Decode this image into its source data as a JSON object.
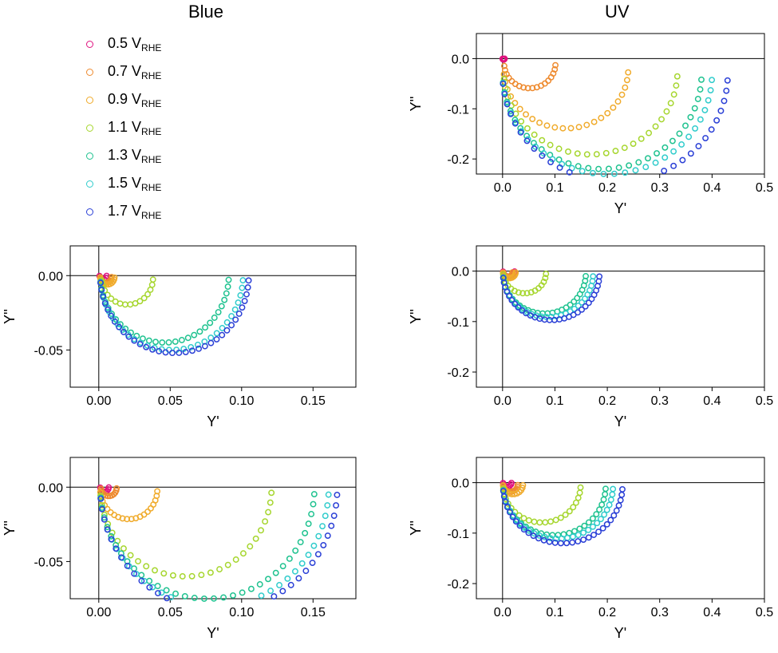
{
  "column_titles": [
    "Blue",
    "UV"
  ],
  "legend": [
    {
      "v": "0.5 V",
      "sub": "RHE",
      "color": "#e0127f"
    },
    {
      "v": "0.7 V",
      "sub": "RHE",
      "color": "#ee8a2e"
    },
    {
      "v": "0.9 V",
      "sub": "RHE",
      "color": "#f0ab2c"
    },
    {
      "v": "1.1 V",
      "sub": "RHE",
      "color": "#a6d62e"
    },
    {
      "v": "1.3 V",
      "sub": "RHE",
      "color": "#1ec28f"
    },
    {
      "v": "1.5 V",
      "sub": "RHE",
      "color": "#30cccc"
    },
    {
      "v": "1.7 V",
      "sub": "RHE",
      "color": "#2a3fd6"
    }
  ],
  "chart_data": [
    {
      "id": "uv-top",
      "column": "UV",
      "type": "scatter",
      "xlabel": "Y'",
      "ylabel": "Y''",
      "xlim": [
        -0.05,
        0.5
      ],
      "ylim": [
        -0.23,
        0.05
      ],
      "xticks": [
        "0.0",
        "0.1",
        "0.2",
        "0.3",
        "0.4",
        "0.5"
      ],
      "yticks": [
        "0.0",
        "-0.1",
        "-0.2"
      ],
      "series": [
        {
          "name": "0.5 VRHE",
          "arcs": [
            {
              "r": 0.002,
              "cx": 0.002,
              "cy": 0.0,
              "n": 6
            }
          ]
        },
        {
          "name": "0.7 VRHE",
          "arcs": [
            {
              "r": 0.049,
              "cx": 0.052,
              "cy": -0.01,
              "n": 18
            }
          ]
        },
        {
          "name": "0.9 VRHE",
          "arcs": [
            {
              "r": 0.119,
              "cx": 0.121,
              "cy": -0.02,
              "n": 24
            }
          ]
        },
        {
          "name": "1.1 VRHE",
          "arcs": [
            {
              "r": 0.166,
              "cx": 0.168,
              "cy": -0.025,
              "n": 28
            }
          ]
        },
        {
          "name": "1.3 VRHE",
          "arcs": [
            {
              "r": 0.19,
              "cx": 0.19,
              "cy": -0.03,
              "n": 30
            }
          ]
        },
        {
          "name": "1.5 VRHE",
          "arcs": [
            {
              "r": 0.2,
              "cx": 0.2,
              "cy": -0.03,
              "n": 30
            }
          ]
        },
        {
          "name": "1.7 VRHE",
          "arcs": [
            {
              "r": 0.215,
              "cx": 0.215,
              "cy": -0.03,
              "n": 32
            }
          ]
        }
      ]
    },
    {
      "id": "blue-mid",
      "column": "Blue",
      "type": "scatter",
      "xlabel": "Y'",
      "ylabel": "Y''",
      "xlim": [
        -0.02,
        0.18
      ],
      "ylim": [
        -0.075,
        0.02
      ],
      "xticks": [
        "0.00",
        "0.05",
        "0.10",
        "0.15"
      ],
      "yticks": [
        "0.00",
        "-0.05"
      ],
      "series": [
        {
          "name": "0.5 VRHE",
          "arcs": [
            {
              "r": 0.0025,
              "cx": 0.003,
              "cy": 0.0,
              "n": 6
            }
          ]
        },
        {
          "name": "0.7 VRHE",
          "arcs": [
            {
              "r": 0.004,
              "cx": 0.005,
              "cy": -0.0007,
              "n": 10
            }
          ]
        },
        {
          "name": "0.9 VRHE",
          "arcs": [
            {
              "r": 0.005,
              "cx": 0.006,
              "cy": -0.001,
              "n": 12
            }
          ]
        },
        {
          "name": "1.1 VRHE",
          "arcs": [
            {
              "r": 0.018,
              "cx": 0.02,
              "cy": -0.0015,
              "n": 16
            }
          ]
        },
        {
          "name": "1.3 VRHE",
          "arcs": [
            {
              "r": 0.045,
              "cx": 0.046,
              "cy": 0.0,
              "n": 30
            }
          ]
        },
        {
          "name": "1.5 VRHE",
          "arcs": [
            {
              "r": 0.05,
              "cx": 0.051,
              "cy": 0.0,
              "n": 30
            }
          ]
        },
        {
          "name": "1.7 VRHE",
          "arcs": [
            {
              "r": 0.052,
              "cx": 0.053,
              "cy": 0.0,
              "n": 34
            }
          ]
        }
      ]
    },
    {
      "id": "uv-mid",
      "column": "UV",
      "type": "scatter",
      "xlabel": "Y'",
      "ylabel": "Y''",
      "xlim": [
        -0.05,
        0.5
      ],
      "ylim": [
        -0.23,
        0.05
      ],
      "xticks": [
        "0.0",
        "0.1",
        "0.2",
        "0.3",
        "0.4",
        "0.5"
      ],
      "yticks": [
        "0.0",
        "-0.1",
        "-0.2"
      ],
      "series": [
        {
          "name": "0.5 VRHE",
          "arcs": [
            {
              "r": 0.011,
              "cx": 0.012,
              "cy": 0.0,
              "n": 10
            }
          ]
        },
        {
          "name": "0.7 VRHE",
          "arcs": [
            {
              "r": 0.009,
              "cx": 0.01,
              "cy": -0.002,
              "n": 10
            }
          ]
        },
        {
          "name": "0.9 VRHE",
          "arcs": [
            {
              "r": 0.012,
              "cx": 0.013,
              "cy": -0.002,
              "n": 12
            }
          ]
        },
        {
          "name": "1.1 VRHE",
          "arcs": [
            {
              "r": 0.041,
              "cx": 0.042,
              "cy": -0.003,
              "n": 16
            }
          ]
        },
        {
          "name": "1.3 VRHE",
          "arcs": [
            {
              "r": 0.079,
              "cx": 0.08,
              "cy": -0.005,
              "n": 26
            }
          ]
        },
        {
          "name": "1.5 VRHE",
          "arcs": [
            {
              "r": 0.086,
              "cx": 0.087,
              "cy": -0.005,
              "n": 28
            }
          ]
        },
        {
          "name": "1.7 VRHE",
          "arcs": [
            {
              "r": 0.092,
              "cx": 0.093,
              "cy": -0.005,
              "n": 30
            }
          ]
        }
      ]
    },
    {
      "id": "blue-bot",
      "column": "Blue",
      "type": "scatter",
      "xlabel": "Y'",
      "ylabel": "Y''",
      "xlim": [
        -0.02,
        0.18
      ],
      "ylim": [
        -0.075,
        0.02
      ],
      "xticks": [
        "0.00",
        "0.05",
        "0.10",
        "0.15"
      ],
      "yticks": [
        "0.00",
        "-0.05"
      ],
      "series": [
        {
          "name": "0.5 VRHE",
          "arcs": [
            {
              "r": 0.003,
              "cx": 0.004,
              "cy": 0.0,
              "n": 8
            }
          ]
        },
        {
          "name": "0.7 VRHE",
          "arcs": [
            {
              "r": 0.0055,
              "cx": 0.007,
              "cy": -0.0005,
              "n": 12
            }
          ]
        },
        {
          "name": "0.9 VRHE",
          "arcs": [
            {
              "r": 0.02,
              "cx": 0.021,
              "cy": -0.0015,
              "n": 20
            }
          ]
        },
        {
          "name": "1.1 VRHE",
          "arcs": [
            {
              "r": 0.06,
              "cx": 0.061,
              "cy": 0.0,
              "n": 28
            }
          ]
        },
        {
          "name": "1.3 VRHE",
          "arcs": [
            {
              "r": 0.075,
              "cx": 0.076,
              "cy": 0.0,
              "n": 34
            }
          ]
        },
        {
          "name": "1.5 VRHE",
          "arcs": [
            {
              "r": 0.08,
              "cx": 0.081,
              "cy": 0.0,
              "n": 34
            }
          ]
        },
        {
          "name": "1.7 VRHE",
          "arcs": [
            {
              "r": 0.083,
              "cx": 0.084,
              "cy": 0.0,
              "n": 36
            }
          ]
        }
      ]
    },
    {
      "id": "uv-bot",
      "column": "UV",
      "type": "scatter",
      "xlabel": "Y'",
      "ylabel": "Y''",
      "xlim": [
        -0.05,
        0.5
      ],
      "ylim": [
        -0.23,
        0.05
      ],
      "xticks": [
        "0.0",
        "0.1",
        "0.2",
        "0.3",
        "0.4",
        "0.5"
      ],
      "yticks": [
        "0.0",
        "-0.1",
        "-0.2"
      ],
      "series": [
        {
          "name": "0.5 VRHE",
          "arcs": [
            {
              "r": 0.008,
              "cx": 0.009,
              "cy": 0.0,
              "n": 8
            }
          ]
        },
        {
          "name": "0.7 VRHE",
          "arcs": [
            {
              "r": 0.014,
              "cx": 0.015,
              "cy": -0.004,
              "n": 12
            }
          ]
        },
        {
          "name": "0.9 VRHE",
          "arcs": [
            {
              "r": 0.019,
              "cx": 0.02,
              "cy": -0.004,
              "n": 12
            }
          ]
        },
        {
          "name": "1.1 VRHE",
          "arcs": [
            {
              "r": 0.074,
              "cx": 0.075,
              "cy": -0.005,
              "n": 22
            }
          ]
        },
        {
          "name": "1.3 VRHE",
          "arcs": [
            {
              "r": 0.098,
              "cx": 0.099,
              "cy": -0.006,
              "n": 28
            }
          ]
        },
        {
          "name": "1.5 VRHE",
          "arcs": [
            {
              "r": 0.105,
              "cx": 0.106,
              "cy": -0.006,
              "n": 30
            }
          ]
        },
        {
          "name": "1.7 VRHE",
          "arcs": [
            {
              "r": 0.114,
              "cx": 0.115,
              "cy": -0.006,
              "n": 32
            }
          ]
        }
      ]
    }
  ]
}
